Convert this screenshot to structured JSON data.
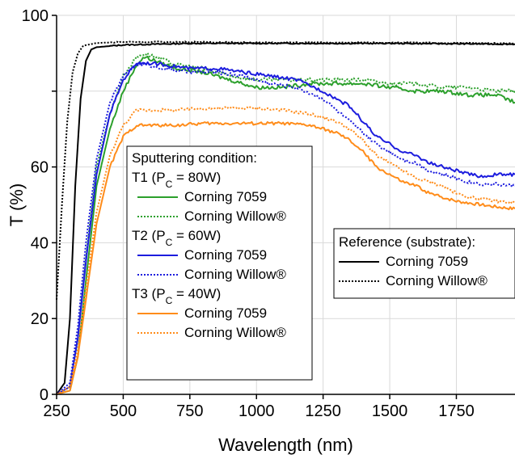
{
  "chart_data": {
    "type": "line",
    "xlabel": "Wavelength (nm)",
    "ylabel": "T (%)",
    "xlim": [
      250,
      1970
    ],
    "ylim": [
      0,
      100
    ],
    "xticks": [
      "250",
      "500",
      "750",
      "1000",
      "1250",
      "1500",
      "1750"
    ],
    "yticks": [
      "0",
      "20",
      "40",
      "60",
      "",
      "100"
    ],
    "colors": {
      "green": "#2ca02c",
      "blue": "#1c1cde",
      "orange": "#ff8c1a",
      "black": "#000000"
    },
    "legend_main": {
      "placement": "center-left",
      "title": "Sputtering condition:",
      "groups": [
        {
          "label": "T1 (P",
          "sub": "C",
          "label_end": " = 80W)",
          "entries": [
            {
              "name": "Corning 7059",
              "color": "#2ca02c",
              "dash": "solid"
            },
            {
              "name": "Corning Willow®",
              "color": "#2ca02c",
              "dash": "dotted"
            }
          ]
        },
        {
          "label": "T2 (P",
          "sub": "C",
          "label_end": " = 60W)",
          "entries": [
            {
              "name": "Corning 7059",
              "color": "#1c1cde",
              "dash": "solid"
            },
            {
              "name": "Corning Willow®",
              "color": "#1c1cde",
              "dash": "dotted"
            }
          ]
        },
        {
          "label": "T3 (P",
          "sub": "C",
          "label_end": " = 40W)",
          "entries": [
            {
              "name": "Corning 7059",
              "color": "#ff8c1a",
              "dash": "solid"
            },
            {
              "name": "Corning Willow®",
              "color": "#ff8c1a",
              "dash": "dotted"
            }
          ]
        }
      ]
    },
    "legend_ref": {
      "placement": "center-right",
      "title": "Reference (substrate):",
      "entries": [
        {
          "name": "Corning 7059",
          "color": "#000000",
          "dash": "solid"
        },
        {
          "name": "Corning Willow®",
          "color": "#000000",
          "dash": "dotted"
        }
      ]
    },
    "series": [
      {
        "color": "#000000",
        "dash": "solid",
        "noise": 0.15,
        "points": [
          [
            250,
            0
          ],
          [
            280,
            3
          ],
          [
            300,
            20
          ],
          [
            320,
            55
          ],
          [
            340,
            78
          ],
          [
            360,
            88
          ],
          [
            380,
            91
          ],
          [
            400,
            91.6
          ],
          [
            500,
            92.2
          ],
          [
            750,
            92.6
          ],
          [
            1000,
            92.6
          ],
          [
            1250,
            92.6
          ],
          [
            1500,
            92.6
          ],
          [
            1750,
            92.5
          ],
          [
            1970,
            92.4
          ]
        ]
      },
      {
        "color": "#000000",
        "dash": "dotted",
        "noise": 0.15,
        "points": [
          [
            250,
            25
          ],
          [
            270,
            50
          ],
          [
            290,
            72
          ],
          [
            310,
            85
          ],
          [
            330,
            90
          ],
          [
            350,
            92
          ],
          [
            400,
            92.7
          ],
          [
            500,
            93
          ],
          [
            750,
            93
          ],
          [
            1000,
            92.8
          ],
          [
            1250,
            92.8
          ],
          [
            1500,
            92.8
          ],
          [
            1750,
            92.7
          ],
          [
            1970,
            92.6
          ]
        ]
      },
      {
        "color": "#2ca02c",
        "dash": "solid",
        "noise": 0.5,
        "points": [
          [
            250,
            0
          ],
          [
            300,
            1
          ],
          [
            330,
            10
          ],
          [
            360,
            30
          ],
          [
            400,
            55
          ],
          [
            450,
            70
          ],
          [
            500,
            80
          ],
          [
            550,
            87
          ],
          [
            580,
            89
          ],
          [
            620,
            88
          ],
          [
            700,
            86
          ],
          [
            800,
            85
          ],
          [
            900,
            83
          ],
          [
            1000,
            81
          ],
          [
            1100,
            81
          ],
          [
            1200,
            82
          ],
          [
            1300,
            82
          ],
          [
            1400,
            82
          ],
          [
            1500,
            81
          ],
          [
            1600,
            80
          ],
          [
            1700,
            80
          ],
          [
            1800,
            79
          ],
          [
            1900,
            79
          ],
          [
            1970,
            77
          ]
        ]
      },
      {
        "color": "#2ca02c",
        "dash": "dotted",
        "noise": 0.5,
        "points": [
          [
            250,
            0
          ],
          [
            300,
            2
          ],
          [
            330,
            15
          ],
          [
            360,
            36
          ],
          [
            400,
            60
          ],
          [
            450,
            74
          ],
          [
            500,
            84
          ],
          [
            550,
            89
          ],
          [
            580,
            90
          ],
          [
            620,
            89
          ],
          [
            700,
            87
          ],
          [
            800,
            86
          ],
          [
            900,
            84
          ],
          [
            1000,
            83
          ],
          [
            1100,
            83
          ],
          [
            1200,
            83
          ],
          [
            1300,
            83
          ],
          [
            1400,
            83
          ],
          [
            1500,
            82
          ],
          [
            1600,
            82
          ],
          [
            1700,
            81
          ],
          [
            1800,
            81
          ],
          [
            1900,
            80
          ],
          [
            1970,
            80
          ]
        ]
      },
      {
        "color": "#1c1cde",
        "dash": "solid",
        "noise": 0.45,
        "points": [
          [
            250,
            0
          ],
          [
            300,
            2
          ],
          [
            330,
            15
          ],
          [
            360,
            35
          ],
          [
            400,
            58
          ],
          [
            450,
            74
          ],
          [
            500,
            83
          ],
          [
            550,
            87.5
          ],
          [
            580,
            87.5
          ],
          [
            650,
            87
          ],
          [
            750,
            86
          ],
          [
            850,
            86
          ],
          [
            950,
            85
          ],
          [
            1050,
            84
          ],
          [
            1150,
            83
          ],
          [
            1250,
            80
          ],
          [
            1300,
            78
          ],
          [
            1350,
            76
          ],
          [
            1400,
            72
          ],
          [
            1450,
            68
          ],
          [
            1500,
            66
          ],
          [
            1550,
            64
          ],
          [
            1600,
            63
          ],
          [
            1650,
            61
          ],
          [
            1700,
            60
          ],
          [
            1750,
            59
          ],
          [
            1800,
            58
          ],
          [
            1850,
            57.5
          ],
          [
            1900,
            58
          ],
          [
            1970,
            58
          ]
        ]
      },
      {
        "color": "#1c1cde",
        "dash": "dotted",
        "noise": 0.45,
        "points": [
          [
            250,
            0
          ],
          [
            300,
            3
          ],
          [
            330,
            18
          ],
          [
            360,
            40
          ],
          [
            400,
            62
          ],
          [
            450,
            77
          ],
          [
            500,
            84
          ],
          [
            550,
            87
          ],
          [
            580,
            87
          ],
          [
            650,
            86
          ],
          [
            750,
            85
          ],
          [
            850,
            85
          ],
          [
            950,
            84
          ],
          [
            1050,
            82
          ],
          [
            1150,
            81
          ],
          [
            1250,
            78
          ],
          [
            1300,
            75
          ],
          [
            1350,
            72
          ],
          [
            1400,
            69
          ],
          [
            1450,
            66
          ],
          [
            1500,
            64
          ],
          [
            1550,
            62
          ],
          [
            1600,
            61
          ],
          [
            1650,
            59
          ],
          [
            1700,
            58
          ],
          [
            1750,
            57
          ],
          [
            1800,
            56
          ],
          [
            1850,
            55.5
          ],
          [
            1900,
            55.5
          ],
          [
            1970,
            55
          ]
        ]
      },
      {
        "color": "#ff8c1a",
        "dash": "solid",
        "noise": 0.4,
        "points": [
          [
            250,
            0
          ],
          [
            300,
            1
          ],
          [
            330,
            10
          ],
          [
            360,
            25
          ],
          [
            400,
            45
          ],
          [
            450,
            60
          ],
          [
            500,
            68
          ],
          [
            550,
            71
          ],
          [
            600,
            71
          ],
          [
            700,
            71
          ],
          [
            800,
            71.5
          ],
          [
            900,
            71.5
          ],
          [
            1000,
            71.5
          ],
          [
            1100,
            71.5
          ],
          [
            1200,
            71
          ],
          [
            1300,
            69
          ],
          [
            1350,
            67
          ],
          [
            1400,
            64
          ],
          [
            1450,
            60
          ],
          [
            1500,
            58
          ],
          [
            1550,
            56
          ],
          [
            1600,
            55
          ],
          [
            1650,
            53
          ],
          [
            1700,
            52
          ],
          [
            1750,
            51
          ],
          [
            1800,
            50.5
          ],
          [
            1850,
            50
          ],
          [
            1900,
            49.5
          ],
          [
            1970,
            49
          ]
        ]
      },
      {
        "color": "#ff8c1a",
        "dash": "dotted",
        "noise": 0.4,
        "points": [
          [
            250,
            0
          ],
          [
            300,
            2
          ],
          [
            330,
            12
          ],
          [
            360,
            28
          ],
          [
            400,
            48
          ],
          [
            450,
            63
          ],
          [
            500,
            71
          ],
          [
            550,
            75
          ],
          [
            600,
            75
          ],
          [
            700,
            75
          ],
          [
            800,
            75.5
          ],
          [
            900,
            75.5
          ],
          [
            1000,
            75.5
          ],
          [
            1100,
            75
          ],
          [
            1200,
            74
          ],
          [
            1300,
            72
          ],
          [
            1350,
            70
          ],
          [
            1400,
            67
          ],
          [
            1450,
            63
          ],
          [
            1500,
            61
          ],
          [
            1550,
            59
          ],
          [
            1600,
            57
          ],
          [
            1650,
            56
          ],
          [
            1700,
            55
          ],
          [
            1750,
            53
          ],
          [
            1800,
            52
          ],
          [
            1850,
            51.5
          ],
          [
            1900,
            51
          ],
          [
            1970,
            50.5
          ]
        ]
      }
    ]
  }
}
